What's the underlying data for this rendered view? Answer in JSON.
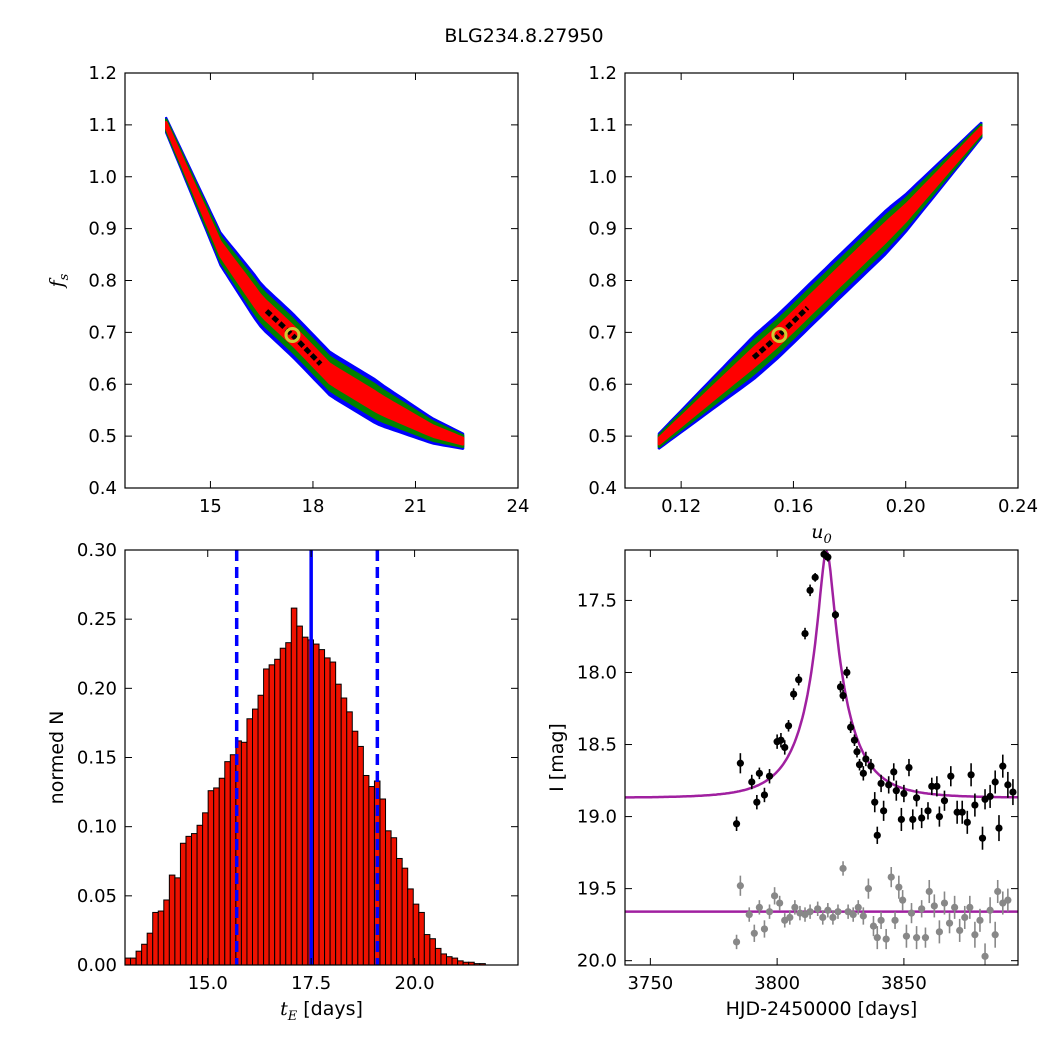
{
  "figure_title": "BLG234.8.27950",
  "colors": {
    "sigma1": "#ff0000",
    "sigma2": "#008000",
    "sigma3": "#0000ff",
    "core": "#000000",
    "best_fit": "#cccc33",
    "fit_curve": "#a020a0",
    "hist_bar": "#ee1100",
    "hist_line": "#0000ff",
    "phot_ogle": "#000000",
    "phot_moa": "#888888"
  },
  "chart_data": [
    {
      "id": "fs_vs_tE",
      "type": "heatmap",
      "xlabel": "",
      "ylabel": {
        "math": "f",
        "sub": "s"
      },
      "xlim": [
        12.5,
        24
      ],
      "ylim": [
        0.4,
        1.2
      ],
      "xticks": [
        15,
        18,
        21,
        24
      ],
      "xtick_labels": [
        "15",
        "18",
        "21",
        "24"
      ],
      "yticks": [
        0.4,
        0.5,
        0.6,
        0.7,
        0.8,
        0.9,
        1.0,
        1.1,
        1.2
      ],
      "ytick_labels": [
        "0.4",
        "0.5",
        "0.6",
        "0.7",
        "0.8",
        "0.9",
        "1.0",
        "1.1",
        "1.2"
      ],
      "ridge": [
        [
          13.7,
          1.1
        ],
        [
          15.3,
          0.86
        ],
        [
          16.5,
          0.75
        ],
        [
          17.4,
          0.695
        ],
        [
          18.5,
          0.62
        ],
        [
          20.0,
          0.56
        ],
        [
          21.5,
          0.51
        ],
        [
          22.4,
          0.49
        ]
      ],
      "best_fit": [
        17.4,
        0.695
      ]
    },
    {
      "id": "fs_vs_u0",
      "type": "heatmap",
      "xlabel": {
        "math": "u",
        "sub": "0"
      },
      "ylabel": "",
      "xlim": [
        0.1,
        0.24
      ],
      "ylim": [
        0.4,
        1.2
      ],
      "xticks": [
        0.12,
        0.16,
        0.2,
        0.24
      ],
      "xtick_labels": [
        "0.12",
        "0.16",
        "0.20",
        "0.24"
      ],
      "yticks": [
        0.4,
        0.5,
        0.6,
        0.7,
        0.8,
        0.9,
        1.0,
        1.1,
        1.2
      ],
      "ytick_labels": [
        "0.4",
        "0.5",
        "0.6",
        "0.7",
        "0.8",
        "0.9",
        "1.0",
        "1.1",
        "1.2"
      ],
      "ridge": [
        [
          0.112,
          0.49
        ],
        [
          0.135,
          0.6
        ],
        [
          0.155,
          0.695
        ],
        [
          0.175,
          0.8
        ],
        [
          0.2,
          0.93
        ],
        [
          0.227,
          1.09
        ]
      ],
      "best_fit": [
        0.155,
        0.695
      ]
    },
    {
      "id": "tE_histogram",
      "type": "bar",
      "xlabel": {
        "math": "t",
        "sub": "E",
        "text": " [days]"
      },
      "ylabel": "normed N",
      "xlim": [
        13.0,
        22.5
      ],
      "ylim": [
        0.0,
        0.3
      ],
      "xticks": [
        15.0,
        17.5,
        20.0
      ],
      "xtick_labels": [
        "15.0",
        "17.5",
        "20.0"
      ],
      "yticks": [
        0.0,
        0.05,
        0.1,
        0.15,
        0.2,
        0.25,
        0.3
      ],
      "ytick_labels": [
        "0.00",
        "0.05",
        "0.10",
        "0.15",
        "0.20",
        "0.25",
        "0.30"
      ],
      "bin_start": 13.0,
      "bin_width": 0.134,
      "values": [
        0.005,
        0.005,
        0.01,
        0.015,
        0.023,
        0.038,
        0.039,
        0.047,
        0.065,
        0.063,
        0.088,
        0.093,
        0.095,
        0.101,
        0.11,
        0.126,
        0.128,
        0.135,
        0.147,
        0.152,
        0.162,
        0.161,
        0.178,
        0.185,
        0.195,
        0.214,
        0.217,
        0.221,
        0.229,
        0.233,
        0.258,
        0.245,
        0.237,
        0.235,
        0.232,
        0.228,
        0.222,
        0.219,
        0.203,
        0.193,
        0.183,
        0.169,
        0.158,
        0.137,
        0.129,
        0.133,
        0.12,
        0.097,
        0.092,
        0.077,
        0.07,
        0.055,
        0.044,
        0.038,
        0.022,
        0.019,
        0.012,
        0.008,
        0.006,
        0.005,
        0.003,
        0.002,
        0.002,
        0.001,
        0.001
      ],
      "median_line": 17.5,
      "sigma_lines": [
        15.7,
        19.1
      ]
    },
    {
      "id": "light_curve",
      "type": "scatter",
      "xlabel": "HJD-2450000 [days]",
      "ylabel": "I [mag]",
      "xlim": [
        3740,
        3895
      ],
      "ylim": [
        20.03,
        17.15
      ],
      "xticks": [
        3750,
        3800,
        3850
      ],
      "xtick_labels": [
        "3750",
        "3800",
        "3850"
      ],
      "yticks": [
        17.5,
        18.0,
        18.5,
        19.0,
        19.5,
        20.0
      ],
      "ytick_labels": [
        "17.5",
        "18.0",
        "18.5",
        "19.0",
        "19.5",
        "20.0"
      ],
      "model": {
        "t0": 3819.5,
        "tE": 17.4,
        "u0": 0.155,
        "fs": 0.695,
        "base_mag": 18.87
      },
      "ogle_points": [
        [
          3784,
          19.05,
          0.05
        ],
        [
          3785.5,
          18.63,
          0.07
        ],
        [
          3790,
          18.76,
          0.05
        ],
        [
          3792,
          18.9,
          0.05
        ],
        [
          3793,
          18.7,
          0.04
        ],
        [
          3795,
          18.85,
          0.05
        ],
        [
          3797,
          18.72,
          0.05
        ],
        [
          3800,
          18.48,
          0.05
        ],
        [
          3801.5,
          18.47,
          0.05
        ],
        [
          3803,
          18.52,
          0.05
        ],
        [
          3804.5,
          18.37,
          0.04
        ],
        [
          3806.5,
          18.15,
          0.04
        ],
        [
          3808.5,
          18.05,
          0.04
        ],
        [
          3811,
          17.73,
          0.04
        ],
        [
          3813,
          17.43,
          0.04
        ],
        [
          3815,
          17.34,
          0.03
        ],
        [
          3818.5,
          17.18,
          0.03
        ],
        [
          3820,
          17.2,
          0.03
        ],
        [
          3823,
          17.6,
          0.03
        ],
        [
          3825,
          18.1,
          0.04
        ],
        [
          3826,
          18.16,
          0.04
        ],
        [
          3827.5,
          18.0,
          0.04
        ],
        [
          3829,
          18.38,
          0.04
        ],
        [
          3830.5,
          18.47,
          0.04
        ],
        [
          3831.5,
          18.55,
          0.04
        ],
        [
          3832.5,
          18.64,
          0.04
        ],
        [
          3834,
          18.7,
          0.05
        ],
        [
          3835,
          18.6,
          0.05
        ],
        [
          3837,
          18.65,
          0.05
        ],
        [
          3838.5,
          18.9,
          0.07
        ],
        [
          3839.5,
          19.13,
          0.06
        ],
        [
          3841,
          18.77,
          0.06
        ],
        [
          3842,
          18.96,
          0.07
        ],
        [
          3844,
          18.78,
          0.06
        ],
        [
          3846,
          18.69,
          0.06
        ],
        [
          3847,
          18.82,
          0.07
        ],
        [
          3849,
          19.02,
          0.08
        ],
        [
          3850,
          18.84,
          0.06
        ],
        [
          3852,
          18.66,
          0.06
        ],
        [
          3853.5,
          19.02,
          0.07
        ],
        [
          3855,
          18.87,
          0.06
        ],
        [
          3857,
          19.01,
          0.07
        ],
        [
          3859.5,
          18.96,
          0.06
        ],
        [
          3861,
          18.79,
          0.06
        ],
        [
          3863,
          18.79,
          0.07
        ],
        [
          3864,
          19.0,
          0.07
        ],
        [
          3866,
          18.89,
          0.07
        ],
        [
          3868.5,
          18.72,
          0.07
        ],
        [
          3871,
          18.97,
          0.08
        ],
        [
          3873,
          18.97,
          0.08
        ],
        [
          3875,
          19.04,
          0.08
        ],
        [
          3876.5,
          18.71,
          0.08
        ],
        [
          3878,
          18.92,
          0.08
        ],
        [
          3881,
          19.15,
          0.08
        ],
        [
          3882,
          18.88,
          0.07
        ],
        [
          3884,
          18.86,
          0.08
        ],
        [
          3886,
          18.76,
          0.08
        ],
        [
          3887.5,
          19.08,
          0.09
        ],
        [
          3889,
          18.65,
          0.08
        ],
        [
          3891,
          18.78,
          0.09
        ],
        [
          3893,
          18.83,
          0.09
        ]
      ],
      "moa_points": [
        [
          3784,
          19.87,
          0.05
        ],
        [
          3785.5,
          19.48,
          0.07
        ],
        [
          3789,
          19.68,
          0.05
        ],
        [
          3791,
          19.81,
          0.06
        ],
        [
          3793,
          19.63,
          0.05
        ],
        [
          3795,
          19.78,
          0.06
        ],
        [
          3797,
          19.66,
          0.05
        ],
        [
          3799,
          19.55,
          0.06
        ],
        [
          3801,
          19.6,
          0.05
        ],
        [
          3803,
          19.72,
          0.05
        ],
        [
          3805,
          19.7,
          0.05
        ],
        [
          3807,
          19.63,
          0.05
        ],
        [
          3809,
          19.67,
          0.05
        ],
        [
          3811,
          19.68,
          0.05
        ],
        [
          3813,
          19.66,
          0.05
        ],
        [
          3816,
          19.64,
          0.05
        ],
        [
          3818,
          19.7,
          0.05
        ],
        [
          3820,
          19.65,
          0.05
        ],
        [
          3822,
          19.7,
          0.05
        ],
        [
          3824,
          19.66,
          0.05
        ],
        [
          3826,
          19.36,
          0.05
        ],
        [
          3828,
          19.66,
          0.05
        ],
        [
          3830,
          19.68,
          0.05
        ],
        [
          3832,
          19.63,
          0.05
        ],
        [
          3834,
          19.69,
          0.06
        ],
        [
          3836,
          19.5,
          0.07
        ],
        [
          3838,
          19.76,
          0.07
        ],
        [
          3839.5,
          19.84,
          0.08
        ],
        [
          3841,
          19.72,
          0.06
        ],
        [
          3843,
          19.85,
          0.07
        ],
        [
          3845,
          19.42,
          0.07
        ],
        [
          3846.5,
          19.72,
          0.06
        ],
        [
          3848,
          19.49,
          0.08
        ],
        [
          3849.5,
          19.58,
          0.07
        ],
        [
          3851,
          19.83,
          0.08
        ],
        [
          3853,
          19.67,
          0.07
        ],
        [
          3855,
          19.84,
          0.08
        ],
        [
          3857,
          19.64,
          0.06
        ],
        [
          3858.5,
          19.84,
          0.07
        ],
        [
          3860,
          19.52,
          0.08
        ],
        [
          3862,
          19.62,
          0.08
        ],
        [
          3864,
          19.8,
          0.08
        ],
        [
          3866,
          19.6,
          0.08
        ],
        [
          3868,
          19.74,
          0.07
        ],
        [
          3870,
          19.63,
          0.08
        ],
        [
          3872,
          19.79,
          0.08
        ],
        [
          3874,
          19.7,
          0.08
        ],
        [
          3876,
          19.63,
          0.08
        ],
        [
          3878,
          19.82,
          0.09
        ],
        [
          3880,
          19.72,
          0.08
        ],
        [
          3882,
          19.97,
          0.09
        ],
        [
          3884,
          19.65,
          0.09
        ],
        [
          3886,
          19.82,
          0.09
        ],
        [
          3887,
          19.52,
          0.08
        ],
        [
          3889,
          19.6,
          0.08
        ],
        [
          3891,
          19.58,
          0.08
        ]
      ],
      "moa_model_mag": 19.66
    }
  ]
}
